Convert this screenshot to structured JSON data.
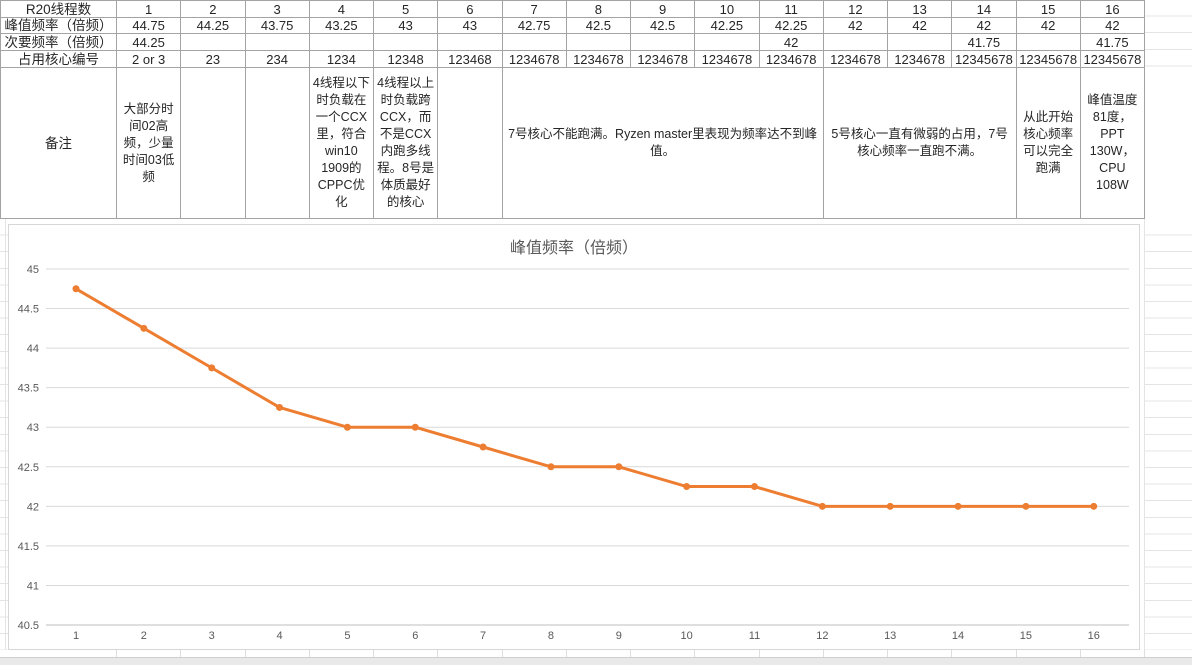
{
  "table": {
    "row_headers": [
      "R20线程数",
      "峰值频率（倍频）",
      "次要频率（倍频）",
      "占用核心编号",
      "备注"
    ],
    "threads": [
      "1",
      "2",
      "3",
      "4",
      "5",
      "6",
      "7",
      "8",
      "9",
      "10",
      "11",
      "12",
      "13",
      "14",
      "15",
      "16"
    ],
    "peak_freq": [
      "44.75",
      "44.25",
      "43.75",
      "43.25",
      "43",
      "43",
      "42.75",
      "42.5",
      "42.5",
      "42.25",
      "42.25",
      "42",
      "42",
      "42",
      "42",
      "42"
    ],
    "secondary_freq": [
      "44.25",
      "",
      "",
      "",
      "",
      "",
      "",
      "",
      "",
      "",
      "42",
      "",
      "",
      "41.75",
      "",
      "41.75"
    ],
    "cores_used": [
      "2 or 3",
      "23",
      "234",
      "1234",
      "12348",
      "123468",
      "1234678",
      "1234678",
      "1234678",
      "1234678",
      "1234678",
      "1234678",
      "1234678",
      "12345678",
      "12345678",
      "12345678"
    ],
    "notes": {
      "t1": "大部分时间02高频，少量时间03低频",
      "t4": "4线程以下时负载在一个CCX里，符合win10 1909的CPPC优化",
      "t5": "4线程以上时负载跨CCX，而不是CCX内跑多线程。8号是体质最好的核心",
      "t7_11": "7号核心不能跑满。Ryzen master里表现为频率达不到峰值。",
      "t12_14": "5号核心一直有微弱的占用，7号核心频率一直跑不满。",
      "t15": "从此开始核心频率可以完全跑满",
      "t16": "峰值温度81度，PPT 130W，CPU 108W"
    }
  },
  "chart_data": {
    "type": "line",
    "title": "峰值频率（倍频）",
    "x": [
      1,
      2,
      3,
      4,
      5,
      6,
      7,
      8,
      9,
      10,
      11,
      12,
      13,
      14,
      15,
      16
    ],
    "values": [
      44.75,
      44.25,
      43.75,
      43.25,
      43,
      43,
      42.75,
      42.5,
      42.5,
      42.25,
      42.25,
      42,
      42,
      42,
      42,
      42
    ],
    "xlabel": "",
    "ylabel": "",
    "ylim": [
      40.5,
      45
    ],
    "ytick_step": 0.5,
    "grid": true,
    "legend": "none",
    "line_color": "#ED7D31",
    "marker": "circle"
  },
  "colors": {
    "accent_orange": "#ED7D31",
    "cell_border": "#a3a3a3",
    "chart_grid": "#d9d9d9",
    "chart_axis": "#bfbfbf",
    "chart_text": "#595959",
    "table_text": "#262626",
    "sheet_grid": "#e4e4e4"
  }
}
